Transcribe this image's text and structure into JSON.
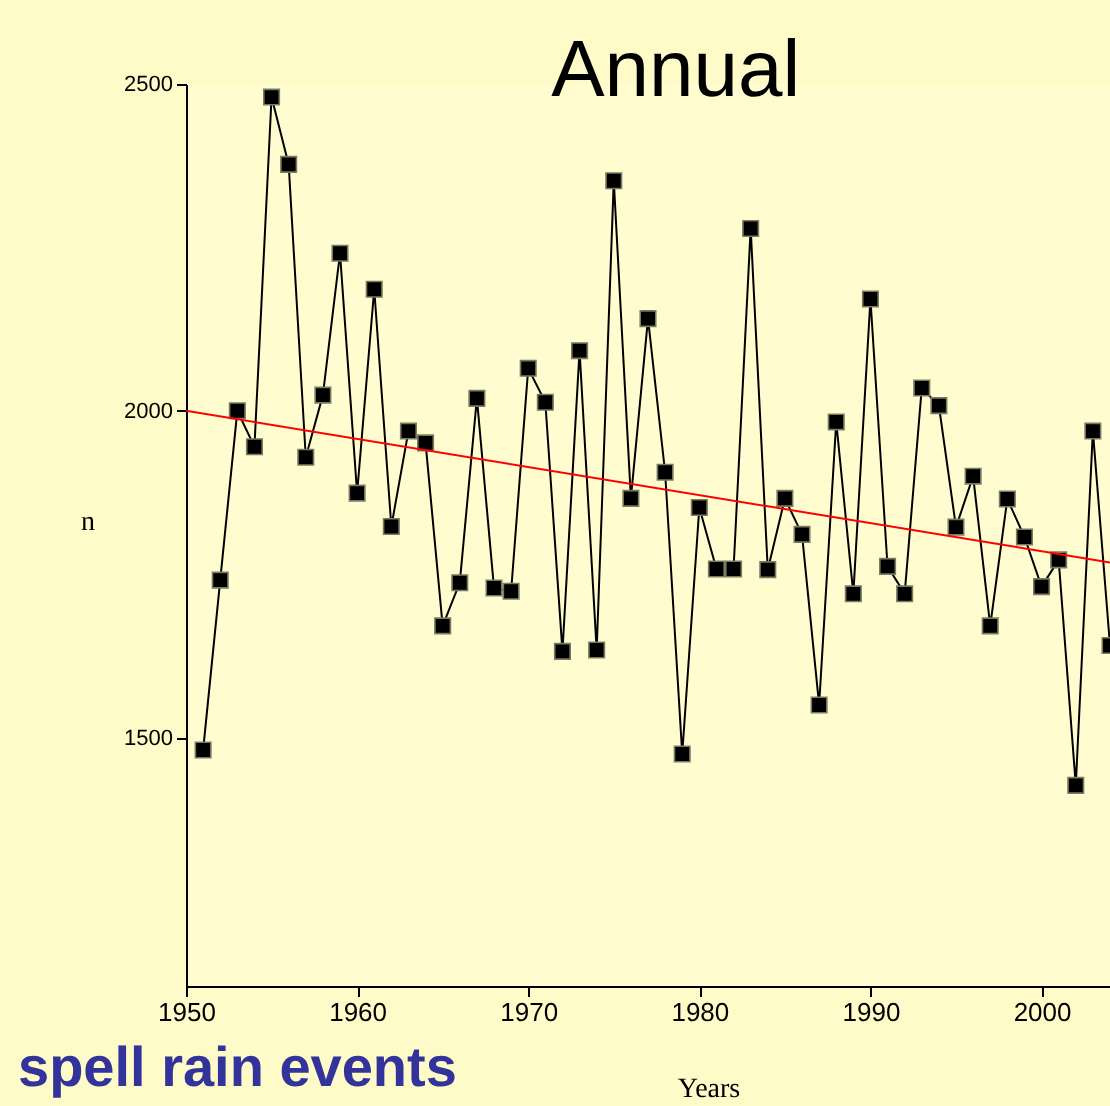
{
  "chart_data": {
    "type": "line",
    "title": "Annual",
    "xlabel": "Years",
    "ylabel": "n",
    "annotations": [
      "spell rain events"
    ],
    "xlim": [
      1950,
      2004
    ],
    "xticks": [
      1950,
      1960,
      1970,
      1980,
      1990,
      2000
    ],
    "ylim": [
      1120,
      2500
    ],
    "yticks": [
      1500,
      2000,
      2500
    ],
    "grid": false,
    "series": [
      {
        "color": "#000000",
        "marker": "square",
        "line_style": "solid",
        "x": [
          1951,
          1952,
          1953,
          1954,
          1955,
          1956,
          1957,
          1958,
          1959,
          1960,
          1961,
          1962,
          1963,
          1964,
          1965,
          1966,
          1967,
          1968,
          1969,
          1970,
          1971,
          1972,
          1973,
          1974,
          1975,
          1976,
          1977,
          1978,
          1979,
          1980,
          1981,
          1982,
          1983,
          1984,
          1985,
          1986,
          1987,
          1988,
          1989,
          1990,
          1991,
          1992,
          1993,
          1994,
          1995,
          1996,
          1997,
          1998,
          1999,
          2000,
          2001,
          2002,
          2003,
          2004
        ],
        "values": [
          1481,
          1741,
          2000,
          1945,
          2480,
          2377,
          1929,
          2024,
          2241,
          1874,
          2186,
          1823,
          1969,
          1951,
          1671,
          1737,
          2019,
          1729,
          1724,
          2065,
          2013,
          1632,
          2092,
          1634,
          2352,
          1866,
          2141,
          1906,
          1475,
          1852,
          1758,
          1758,
          2279,
          1757,
          1866,
          1811,
          1550,
          1983,
          1720,
          2171,
          1762,
          1720,
          2035,
          2008,
          1822,
          1900,
          1671,
          1865,
          1807,
          1731,
          1772,
          1427,
          1969,
          1641
        ]
      },
      {
        "color": "#ff0000",
        "marker": "none",
        "line_style": "solid",
        "x": [
          1950,
          2004
        ],
        "values": [
          2000,
          1768
        ]
      }
    ]
  }
}
